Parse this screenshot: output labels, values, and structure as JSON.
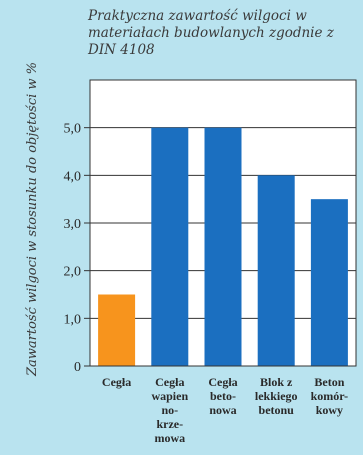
{
  "chart_data": {
    "type": "bar",
    "title": "Praktyczna zawartość wilgoci w materiałach budowlanych zgodnie z DIN 4108",
    "xlabel": "",
    "ylabel": "Zawartość wilgoci w stosunku do objętości w %",
    "ylim": [
      0,
      6
    ],
    "yticks": [
      0,
      1,
      2,
      3,
      4,
      5
    ],
    "ytick_labels": [
      "0",
      "1,0",
      "2,0",
      "3,0",
      "4,0",
      "5,0"
    ],
    "grid": true,
    "categories": [
      [
        "Cegła"
      ],
      [
        "Cegła",
        "wapien",
        "no-",
        "krze-",
        "mowa"
      ],
      [
        "Cegła",
        "beto-",
        "nowa"
      ],
      [
        "Blok z",
        "lekkiego",
        "betonu"
      ],
      [
        "Beton",
        "komór-",
        "kowy"
      ]
    ],
    "values": [
      1.5,
      5.0,
      5.0,
      4.0,
      3.5
    ],
    "colors": [
      "#f7941d",
      "#1b6fc0",
      "#1b6fc0",
      "#1b6fc0",
      "#1b6fc0"
    ]
  }
}
